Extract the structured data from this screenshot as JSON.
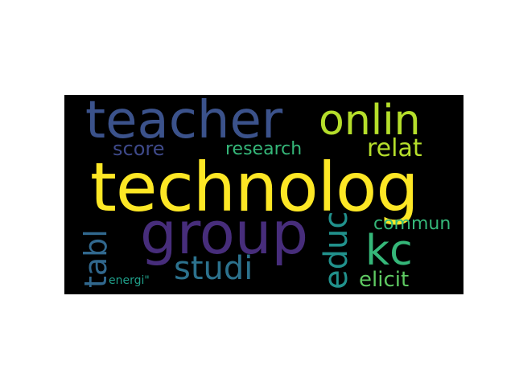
{
  "wordcloud": {
    "words": {
      "technolog": "technolog",
      "teacher": "teacher",
      "onlin": "onlin",
      "group": "group",
      "kc": "kc",
      "relat": "relat",
      "score": "score",
      "research": "research",
      "commun": "commun",
      "studi": "studi",
      "elicit": "elicit",
      "energi": "energi\"",
      "tabl": "tabl",
      "educ": "educ"
    },
    "colors": {
      "background": "#000000",
      "page": "#ffffff"
    }
  }
}
